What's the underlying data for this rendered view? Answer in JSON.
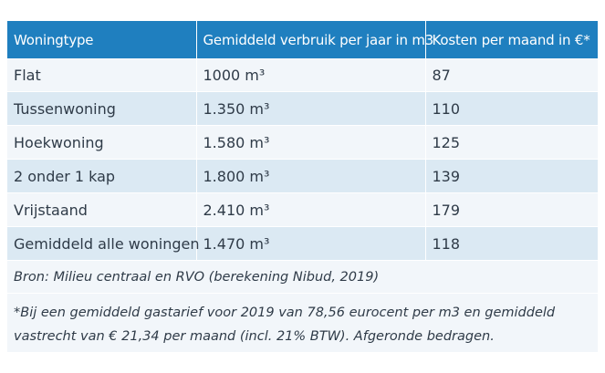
{
  "table": {
    "headers": [
      "Woningtype",
      "Gemiddeld verbruik per jaar in m3",
      "Kosten per maand in €*"
    ],
    "rows": [
      {
        "type": "Flat",
        "usage": "1000 m³",
        "cost": "87"
      },
      {
        "type": "Tussenwoning",
        "usage": "1.350 m³",
        "cost": "110"
      },
      {
        "type": "Hoekwoning",
        "usage": "1.580 m³",
        "cost": "125"
      },
      {
        "type": "2 onder 1 kap",
        "usage": "1.800 m³",
        "cost": "139"
      },
      {
        "type": "Vrijstaand",
        "usage": "2.410 m³",
        "cost": "179"
      },
      {
        "type": "Gemiddeld alle woningen",
        "usage": "1.470 m³",
        "cost": "118"
      }
    ],
    "source": "Bron: Milieu centraal en RVO (berekening Nibud, 2019)",
    "footnote": "*Bij een gemiddeld gastarief voor 2019 van 78,56 eurocent per m3 en gemiddeld vastrecht van € 21,34 per maand (incl. 21% BTW). Afgeronde bedragen."
  },
  "colors": {
    "header_bg": "#1f7fbf",
    "row_light": "#f2f6fa",
    "row_dark": "#dbe9f3"
  }
}
